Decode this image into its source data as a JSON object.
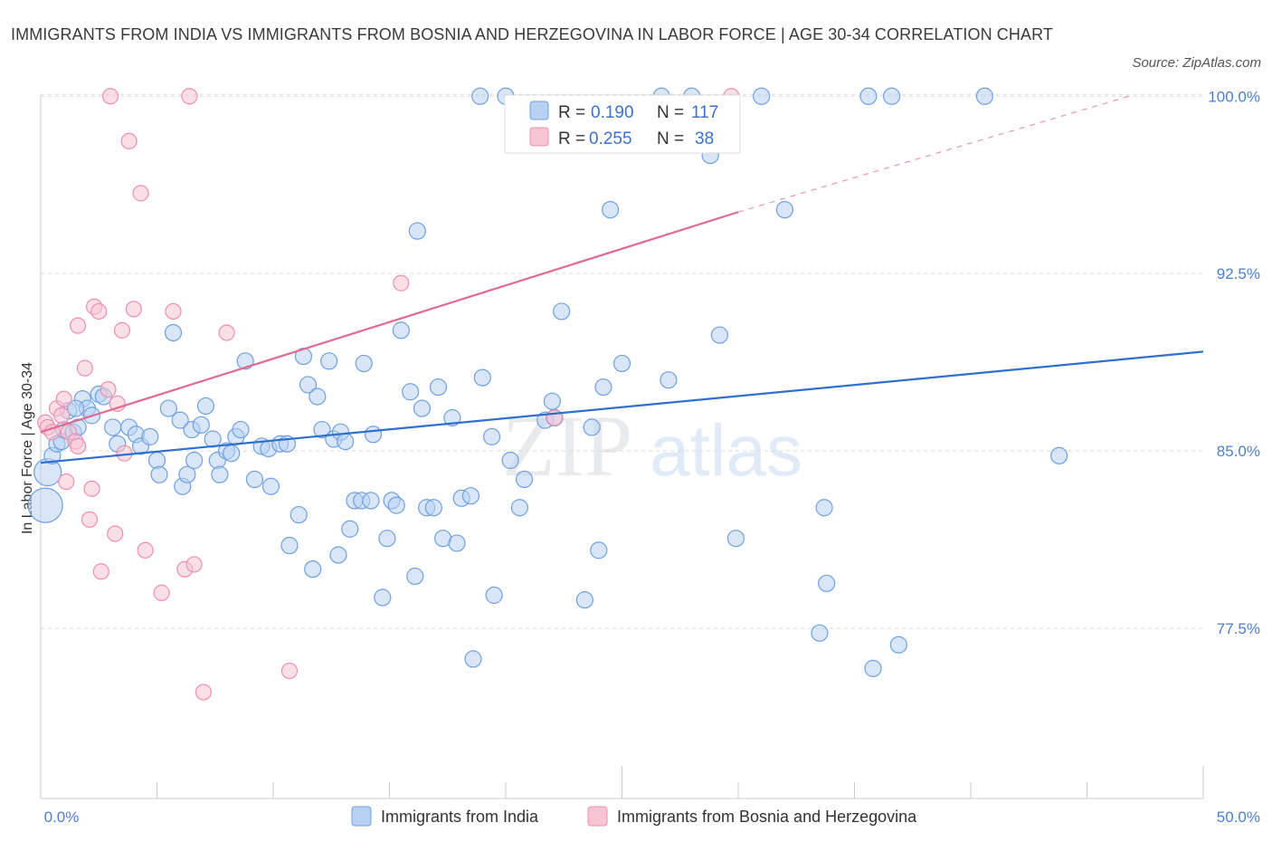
{
  "title": "IMMIGRANTS FROM INDIA VS IMMIGRANTS FROM BOSNIA AND HERZEGOVINA IN LABOR FORCE | AGE 30-34 CORRELATION CHART",
  "source": "Source: ZipAtlas.com",
  "watermark": {
    "zip": "ZIP",
    "atlas": "atlas"
  },
  "colors": {
    "india": "#6fa0e0",
    "india_fill": "#b8d1f3",
    "india_line": "#2f6fce",
    "bosnia": "#ee8faf",
    "bosnia_fill": "#f7c4d4",
    "bosnia_line": "#e06a92",
    "grid": "#d9d9d9",
    "tick_label": "#4a7fd0"
  },
  "legend": {
    "r_label": "R =",
    "n_label": "N =",
    "india": {
      "r": "0.190",
      "n": "117"
    },
    "bosnia": {
      "r": "0.255",
      "n": "38"
    }
  },
  "bottom_legend": {
    "india": "Immigrants from India",
    "bosnia": "Immigrants from Bosnia and Herzegovina"
  },
  "chart_data": {
    "type": "scatter",
    "ylabel": "In Labor Force | Age 30-34",
    "xlabel": "",
    "x_tick_labels": [
      "0.0%",
      "50.0%"
    ],
    "y_tick_labels": [
      "100.0%",
      "92.5%",
      "85.0%",
      "77.5%"
    ],
    "y_ticks": [
      100.0,
      92.5,
      85.0,
      77.5
    ],
    "xlim": [
      0,
      50
    ],
    "ylim": [
      70.3,
      100.7
    ],
    "grid": "horizontal dashed",
    "series": [
      {
        "name": "Immigrants from India",
        "trend": {
          "x": [
            0,
            50
          ],
          "y": [
            84.5,
            89.2
          ]
        },
        "points": [
          [
            0.2,
            82.7
          ],
          [
            0.3,
            84.1
          ],
          [
            0.5,
            84.8
          ],
          [
            0.7,
            85.3
          ],
          [
            0.9,
            85.4
          ],
          [
            1.0,
            85.9
          ],
          [
            1.2,
            86.7
          ],
          [
            1.4,
            85.8
          ],
          [
            1.6,
            86.0
          ],
          [
            1.8,
            87.2
          ],
          [
            2.0,
            86.8
          ],
          [
            2.2,
            86.5
          ],
          [
            2.5,
            87.4
          ],
          [
            2.7,
            87.3
          ],
          [
            3.1,
            86.0
          ],
          [
            3.3,
            85.3
          ],
          [
            3.8,
            86.0
          ],
          [
            4.1,
            85.7
          ],
          [
            4.3,
            85.2
          ],
          [
            4.7,
            85.6
          ],
          [
            5.0,
            84.6
          ],
          [
            5.1,
            84.0
          ],
          [
            5.5,
            86.8
          ],
          [
            5.7,
            90.0
          ],
          [
            6.0,
            86.3
          ],
          [
            6.1,
            83.5
          ],
          [
            6.3,
            84.0
          ],
          [
            6.5,
            85.9
          ],
          [
            6.6,
            84.6
          ],
          [
            6.9,
            86.1
          ],
          [
            7.1,
            86.9
          ],
          [
            7.4,
            85.5
          ],
          [
            7.6,
            84.6
          ],
          [
            7.7,
            84.0
          ],
          [
            8.0,
            85.0
          ],
          [
            8.2,
            84.9
          ],
          [
            8.4,
            85.6
          ],
          [
            8.6,
            85.9
          ],
          [
            8.8,
            88.8
          ],
          [
            9.2,
            83.8
          ],
          [
            9.5,
            85.2
          ],
          [
            9.8,
            85.1
          ],
          [
            9.9,
            83.5
          ],
          [
            10.3,
            85.3
          ],
          [
            10.6,
            85.3
          ],
          [
            10.7,
            81.0
          ],
          [
            11.1,
            82.3
          ],
          [
            11.3,
            89.0
          ],
          [
            11.5,
            87.8
          ],
          [
            11.7,
            80.0
          ],
          [
            11.9,
            87.3
          ],
          [
            12.1,
            85.9
          ],
          [
            12.4,
            88.8
          ],
          [
            12.6,
            85.5
          ],
          [
            12.8,
            80.6
          ],
          [
            12.9,
            85.8
          ],
          [
            13.1,
            85.4
          ],
          [
            13.3,
            81.7
          ],
          [
            13.5,
            82.9
          ],
          [
            13.8,
            82.9
          ],
          [
            13.9,
            88.7
          ],
          [
            14.2,
            82.9
          ],
          [
            14.3,
            85.7
          ],
          [
            14.7,
            78.8
          ],
          [
            14.9,
            81.3
          ],
          [
            15.1,
            82.9
          ],
          [
            15.3,
            82.7
          ],
          [
            15.5,
            90.1
          ],
          [
            15.9,
            87.5
          ],
          [
            16.1,
            79.7
          ],
          [
            16.2,
            94.3
          ],
          [
            16.4,
            86.8
          ],
          [
            16.6,
            82.6
          ],
          [
            16.9,
            82.6
          ],
          [
            17.1,
            87.7
          ],
          [
            17.3,
            81.3
          ],
          [
            17.7,
            86.4
          ],
          [
            17.9,
            81.1
          ],
          [
            18.1,
            83.0
          ],
          [
            18.5,
            83.1
          ],
          [
            18.6,
            76.2
          ],
          [
            18.9,
            100.0
          ],
          [
            19.0,
            88.1
          ],
          [
            19.4,
            85.6
          ],
          [
            19.5,
            78.9
          ],
          [
            20.0,
            100.0
          ],
          [
            20.2,
            84.6
          ],
          [
            20.6,
            82.6
          ],
          [
            20.8,
            83.8
          ],
          [
            21.7,
            86.3
          ],
          [
            22.0,
            87.1
          ],
          [
            22.1,
            86.4
          ],
          [
            22.4,
            90.9
          ],
          [
            23.4,
            78.7
          ],
          [
            23.7,
            86.0
          ],
          [
            24.0,
            80.8
          ],
          [
            24.2,
            87.7
          ],
          [
            24.5,
            95.2
          ],
          [
            25.0,
            88.7
          ],
          [
            26.7,
            100.0
          ],
          [
            27.0,
            88.0
          ],
          [
            28.0,
            100.0
          ],
          [
            28.8,
            97.5
          ],
          [
            29.2,
            89.9
          ],
          [
            29.9,
            81.3
          ],
          [
            31.0,
            100.0
          ],
          [
            32.0,
            95.2
          ],
          [
            33.5,
            77.3
          ],
          [
            33.7,
            82.6
          ],
          [
            33.8,
            79.4
          ],
          [
            35.6,
            100.0
          ],
          [
            35.8,
            75.8
          ],
          [
            36.6,
            100.0
          ],
          [
            36.9,
            76.8
          ],
          [
            40.6,
            100.0
          ],
          [
            43.8,
            84.8
          ],
          [
            1.5,
            86.8
          ]
        ]
      },
      {
        "name": "Immigrants from Bosnia and Herzegovina",
        "trend": {
          "x": [
            0,
            30
          ],
          "y": [
            85.8,
            95.1
          ]
        },
        "trend_extension": {
          "x": [
            30,
            46.8
          ],
          "y": [
            95.1,
            100.0
          ]
        },
        "points": [
          [
            0.2,
            86.2
          ],
          [
            0.3,
            86.0
          ],
          [
            0.5,
            85.8
          ],
          [
            0.7,
            86.8
          ],
          [
            0.9,
            86.5
          ],
          [
            1.0,
            87.2
          ],
          [
            1.1,
            83.7
          ],
          [
            1.2,
            85.8
          ],
          [
            1.5,
            85.4
          ],
          [
            1.6,
            85.2
          ],
          [
            1.6,
            90.3
          ],
          [
            1.9,
            88.5
          ],
          [
            2.1,
            82.1
          ],
          [
            2.2,
            83.4
          ],
          [
            2.3,
            91.1
          ],
          [
            2.5,
            90.9
          ],
          [
            2.6,
            79.9
          ],
          [
            2.9,
            87.6
          ],
          [
            3.0,
            100.0
          ],
          [
            3.2,
            81.5
          ],
          [
            3.3,
            87.0
          ],
          [
            3.5,
            90.1
          ],
          [
            3.6,
            84.9
          ],
          [
            3.8,
            98.1
          ],
          [
            4.0,
            91.0
          ],
          [
            4.3,
            95.9
          ],
          [
            4.5,
            80.8
          ],
          [
            5.2,
            79.0
          ],
          [
            5.7,
            90.9
          ],
          [
            6.2,
            80.0
          ],
          [
            6.4,
            100.0
          ],
          [
            6.6,
            80.2
          ],
          [
            7.0,
            74.8
          ],
          [
            8.0,
            90.0
          ],
          [
            10.7,
            75.7
          ],
          [
            15.5,
            92.1
          ],
          [
            22.1,
            86.4
          ],
          [
            29.7,
            100.0
          ]
        ]
      }
    ]
  }
}
